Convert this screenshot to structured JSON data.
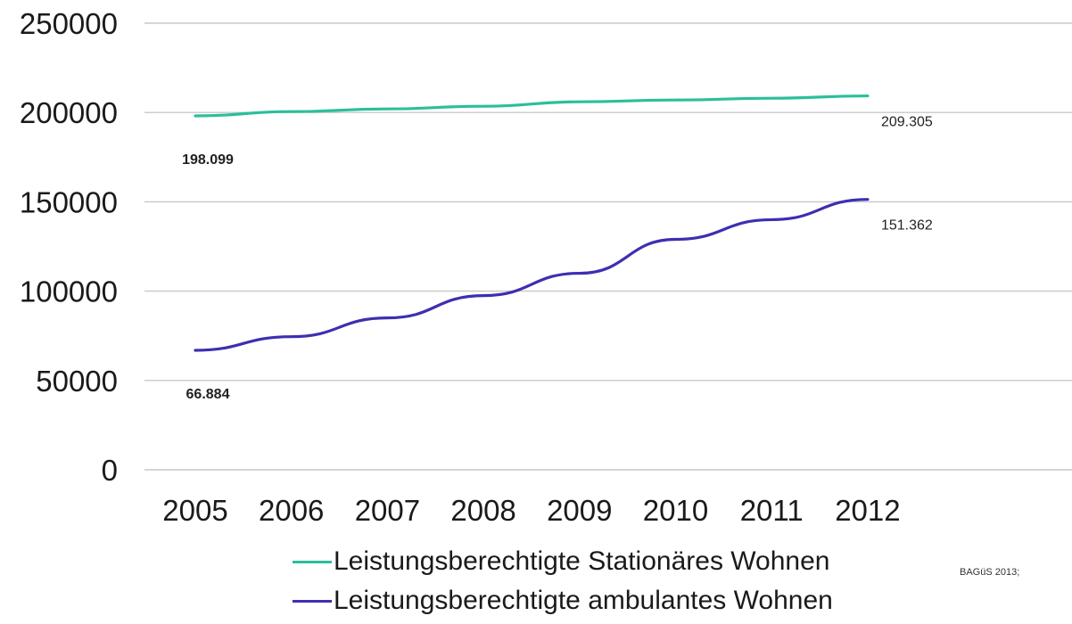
{
  "chart_data": {
    "type": "line",
    "x": [
      "2005",
      "2006",
      "2007",
      "2008",
      "2009",
      "2010",
      "2011",
      "2012"
    ],
    "ylim": [
      0,
      250000
    ],
    "yticks": [
      0,
      50000,
      100000,
      150000,
      200000,
      250000
    ],
    "ytick_labels": [
      "0",
      "50000",
      "100000",
      "150000",
      "200000",
      "250000"
    ],
    "grid": true,
    "legend_position": "bottom",
    "series": [
      {
        "name": "Leistungsberechtigte Stationäres Wohnen",
        "color": "#2bbf9a",
        "values": [
          198099,
          200500,
          202000,
          203500,
          206000,
          207000,
          208000,
          209305
        ],
        "labels": [
          {
            "x": "2005",
            "text": "198.099",
            "bold": true
          },
          {
            "x": "2012",
            "text": "209.305",
            "bold": false
          }
        ]
      },
      {
        "name": "Leistungsberechtigte ambulantes Wohnen",
        "color": "#3d2fb0",
        "values": [
          66884,
          74500,
          85000,
          97500,
          110000,
          129000,
          140000,
          151362
        ],
        "labels": [
          {
            "x": "2005",
            "text": "66.884",
            "bold": true
          },
          {
            "x": "2012",
            "text": "151.362",
            "bold": false
          }
        ]
      }
    ]
  },
  "legend": {
    "items": [
      {
        "label": "Leistungsberechtigte Stationäres Wohnen",
        "color": "#2bbf9a"
      },
      {
        "label": "Leistungsberechtigte ambulantes Wohnen",
        "color": "#3d2fb0"
      }
    ]
  },
  "source": "BAGüS 2013;"
}
